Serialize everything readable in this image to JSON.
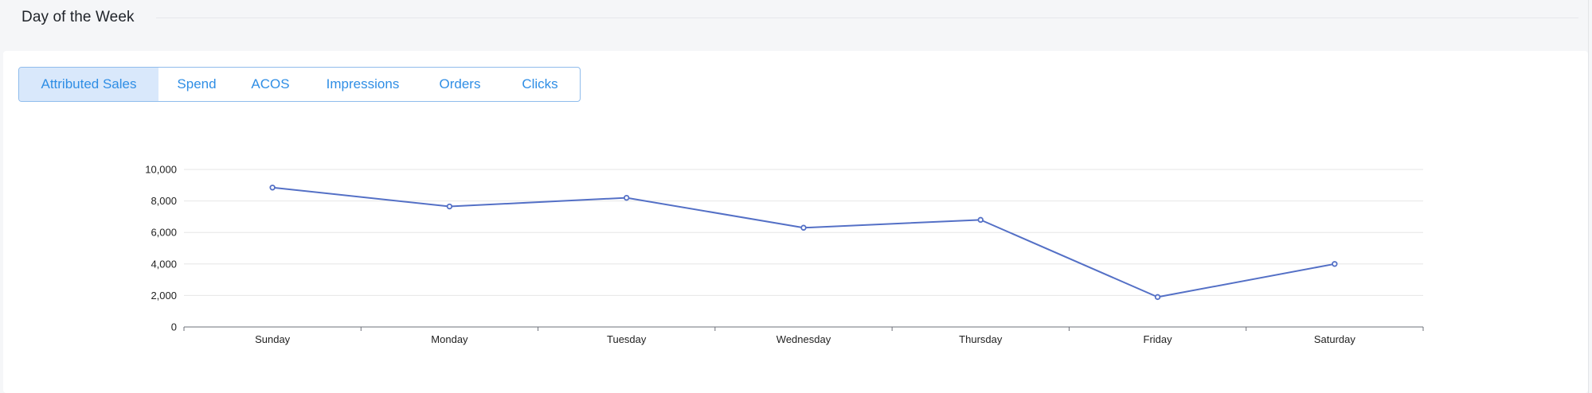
{
  "section": {
    "title": "Day of the Week"
  },
  "tabs": [
    {
      "label": "Attributed Sales",
      "active": true
    },
    {
      "label": "Spend",
      "active": false
    },
    {
      "label": "ACOS",
      "active": false
    },
    {
      "label": "Impressions",
      "active": false
    },
    {
      "label": "Orders",
      "active": false
    },
    {
      "label": "Clicks",
      "active": false
    }
  ],
  "colors": {
    "accent": "#2f8ee5",
    "active_tab_bg": "#d9e8fb",
    "line": "#5470c6",
    "grid": "#e6e6e6",
    "axis": "#6e7079"
  },
  "chart_data": {
    "type": "line",
    "categories": [
      "Sunday",
      "Monday",
      "Tuesday",
      "Wednesday",
      "Thursday",
      "Friday",
      "Saturday"
    ],
    "series": [
      {
        "values": [
          8850,
          7650,
          8200,
          6300,
          6800,
          1900,
          4000
        ]
      }
    ],
    "yticks": [
      "0",
      "2,000",
      "4,000",
      "6,000",
      "8,000",
      "10,000"
    ],
    "ylim": [
      0,
      10000
    ],
    "grid": true,
    "title": "",
    "xlabel": "",
    "ylabel": ""
  }
}
